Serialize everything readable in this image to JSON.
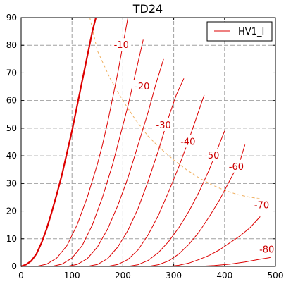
{
  "chart_data": {
    "type": "line",
    "title": "TD24",
    "xlabel": "",
    "ylabel": "",
    "xlim": [
      0,
      500
    ],
    "ylim": [
      0,
      90
    ],
    "x_ticks": [
      0,
      100,
      200,
      300,
      400,
      500
    ],
    "y_ticks": [
      0,
      10,
      20,
      30,
      40,
      50,
      60,
      70,
      80,
      90
    ],
    "grid": true,
    "legend": {
      "position": "top-right",
      "entries": [
        "HV1_I"
      ]
    },
    "colors": {
      "curve": "#dd0000",
      "power_limit": "#f0b060",
      "grid": "#a0a0a0"
    },
    "series": [
      {
        "grid_voltage": 0,
        "label": "",
        "label_at": null,
        "bold": true,
        "points": [
          [
            0,
            0
          ],
          [
            10,
            0.7
          ],
          [
            20,
            2
          ],
          [
            30,
            4.5
          ],
          [
            40,
            8.5
          ],
          [
            50,
            13.5
          ],
          [
            60,
            19.5
          ],
          [
            70,
            26
          ],
          [
            80,
            33
          ],
          [
            90,
            41
          ],
          [
            100,
            49
          ],
          [
            110,
            58
          ],
          [
            120,
            67
          ],
          [
            130,
            76
          ],
          [
            140,
            85
          ],
          [
            147,
            90
          ]
        ]
      },
      {
        "grid_voltage": -10,
        "label": "-10",
        "label_at": [
          197,
          80
        ],
        "bold": false,
        "points": [
          [
            30,
            0
          ],
          [
            50,
            0.8
          ],
          [
            70,
            3
          ],
          [
            90,
            7.5
          ],
          [
            110,
            15
          ],
          [
            130,
            25
          ],
          [
            150,
            37
          ],
          [
            160,
            44
          ],
          [
            170,
            52
          ],
          [
            180,
            61
          ],
          [
            190,
            70
          ],
          [
            200,
            80
          ],
          [
            210,
            90
          ]
        ]
      },
      {
        "grid_voltage": -20,
        "label": "-20",
        "label_at": [
          238,
          65
        ],
        "bold": false,
        "points": [
          [
            60,
            0
          ],
          [
            80,
            0.8
          ],
          [
            100,
            3
          ],
          [
            120,
            7.5
          ],
          [
            140,
            15
          ],
          [
            160,
            25
          ],
          [
            180,
            37
          ],
          [
            200,
            51
          ],
          [
            210,
            58
          ],
          [
            220,
            66
          ],
          [
            230,
            74
          ],
          [
            240,
            82
          ]
        ]
      },
      {
        "grid_voltage": -30,
        "label": "-30",
        "label_at": [
          280,
          51
        ],
        "bold": false,
        "points": [
          [
            90,
            0
          ],
          [
            110,
            0.7
          ],
          [
            130,
            2.8
          ],
          [
            150,
            7
          ],
          [
            170,
            13.5
          ],
          [
            190,
            22
          ],
          [
            210,
            32
          ],
          [
            230,
            44
          ],
          [
            250,
            56
          ],
          [
            265,
            66
          ],
          [
            280,
            75
          ]
        ]
      },
      {
        "grid_voltage": -40,
        "label": "-40",
        "label_at": [
          328,
          45
        ],
        "bold": false,
        "points": [
          [
            130,
            0
          ],
          [
            150,
            0.7
          ],
          [
            170,
            2.8
          ],
          [
            190,
            7
          ],
          [
            210,
            13
          ],
          [
            230,
            21
          ],
          [
            250,
            31
          ],
          [
            270,
            42
          ],
          [
            290,
            54
          ],
          [
            305,
            62
          ],
          [
            320,
            68
          ]
        ]
      },
      {
        "grid_voltage": -50,
        "label": "-50",
        "label_at": [
          375,
          40
        ],
        "bold": false,
        "points": [
          [
            170,
            0
          ],
          [
            190,
            0.7
          ],
          [
            210,
            2.5
          ],
          [
            230,
            6
          ],
          [
            250,
            11.5
          ],
          [
            270,
            18.5
          ],
          [
            290,
            27
          ],
          [
            310,
            36
          ],
          [
            330,
            46
          ],
          [
            345,
            54
          ],
          [
            360,
            62
          ]
        ]
      },
      {
        "grid_voltage": -60,
        "label": "-60",
        "label_at": [
          423,
          36
        ],
        "bold": false,
        "points": [
          [
            210,
            0
          ],
          [
            230,
            0.6
          ],
          [
            250,
            2.2
          ],
          [
            270,
            5
          ],
          [
            290,
            9
          ],
          [
            310,
            14
          ],
          [
            330,
            20
          ],
          [
            350,
            27
          ],
          [
            370,
            35
          ],
          [
            385,
            42
          ],
          [
            400,
            49
          ]
        ]
      },
      {
        "grid_voltage": -70,
        "label": "-70",
        "label_at": [
          473,
          22
        ],
        "bold": false,
        "points": [
          [
            250,
            0
          ],
          [
            270,
            0.6
          ],
          [
            290,
            2
          ],
          [
            310,
            4.5
          ],
          [
            330,
            8
          ],
          [
            350,
            12.5
          ],
          [
            370,
            18
          ],
          [
            390,
            24
          ],
          [
            410,
            31
          ],
          [
            430,
            38
          ],
          [
            440,
            44
          ]
        ]
      },
      {
        "grid_voltage": -80,
        "label": "-80",
        "label_at": [
          483,
          6
        ],
        "bold": false,
        "points": [
          [
            290,
            0
          ],
          [
            310,
            0.4
          ],
          [
            330,
            1.2
          ],
          [
            350,
            2.5
          ],
          [
            370,
            4
          ],
          [
            390,
            6
          ],
          [
            410,
            8.5
          ],
          [
            430,
            11
          ],
          [
            450,
            14
          ],
          [
            470,
            18
          ]
        ]
      },
      {
        "grid_voltage": -90,
        "label": "",
        "label_at": null,
        "bold": false,
        "points": [
          [
            350,
            0
          ],
          [
            380,
            0.3
          ],
          [
            410,
            0.8
          ],
          [
            440,
            1.6
          ],
          [
            470,
            2.6
          ],
          [
            490,
            3.2
          ]
        ]
      }
    ],
    "power_limit": {
      "points": [
        [
          135,
          90
        ],
        [
          150,
          78
        ],
        [
          175,
          68
        ],
        [
          200,
          60
        ],
        [
          225,
          53
        ],
        [
          250,
          47
        ],
        [
          275,
          42.5
        ],
        [
          300,
          38.5
        ],
        [
          325,
          35
        ],
        [
          350,
          32
        ],
        [
          375,
          29.5
        ],
        [
          400,
          27.5
        ],
        [
          425,
          26
        ],
        [
          450,
          25
        ],
        [
          470,
          24.5
        ],
        [
          480,
          24
        ]
      ]
    }
  }
}
